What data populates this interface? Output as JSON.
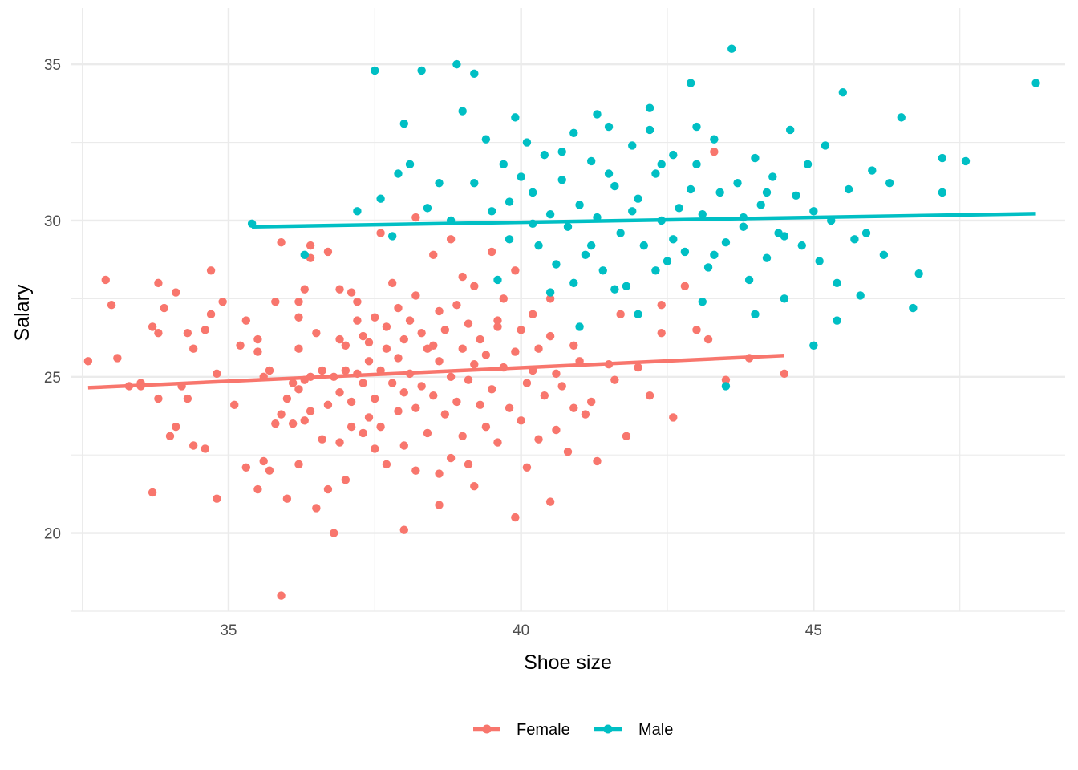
{
  "chart_data": {
    "type": "scatter",
    "title": "",
    "xlabel": "Shoe size",
    "ylabel": "Salary",
    "xlim": [
      32.3,
      49.3
    ],
    "ylim": [
      17.5,
      36.8
    ],
    "x_ticks": [
      35,
      40,
      45
    ],
    "x_tick_labels": [
      "35",
      "40",
      "45"
    ],
    "y_ticks": [
      20,
      25,
      30,
      35
    ],
    "y_tick_labels": [
      "20",
      "25",
      "30",
      "35"
    ],
    "grid": true,
    "legend_position": "bottom",
    "trend_lines": true,
    "series": [
      {
        "name": "Female",
        "color": "#F8766D",
        "trend": {
          "x": [
            32.6,
            44.5
          ],
          "y": [
            24.65,
            25.68
          ]
        },
        "points": [
          [
            32.6,
            25.5
          ],
          [
            32.9,
            28.1
          ],
          [
            33.0,
            27.3
          ],
          [
            33.1,
            25.6
          ],
          [
            33.3,
            24.7
          ],
          [
            33.5,
            24.7
          ],
          [
            33.7,
            26.6
          ],
          [
            33.7,
            21.3
          ],
          [
            33.8,
            26.4
          ],
          [
            33.8,
            28.0
          ],
          [
            33.8,
            24.3
          ],
          [
            33.9,
            27.2
          ],
          [
            34.1,
            27.7
          ],
          [
            34.1,
            23.4
          ],
          [
            34.2,
            24.7
          ],
          [
            34.3,
            26.4
          ],
          [
            34.3,
            24.3
          ],
          [
            34.4,
            25.9
          ],
          [
            34.4,
            22.8
          ],
          [
            34.6,
            26.5
          ],
          [
            34.6,
            22.7
          ],
          [
            34.7,
            28.4
          ],
          [
            34.8,
            25.1
          ],
          [
            34.8,
            21.1
          ],
          [
            34.9,
            27.4
          ],
          [
            35.1,
            24.1
          ],
          [
            35.2,
            26.0
          ],
          [
            35.3,
            26.8
          ],
          [
            35.3,
            22.1
          ],
          [
            35.5,
            25.8
          ],
          [
            35.5,
            21.4
          ],
          [
            35.6,
            25.0
          ],
          [
            35.6,
            22.3
          ],
          [
            35.7,
            25.2
          ],
          [
            35.7,
            22.0
          ],
          [
            35.8,
            23.5
          ],
          [
            35.9,
            29.3
          ],
          [
            35.9,
            23.8
          ],
          [
            35.9,
            18.0
          ],
          [
            36.0,
            21.1
          ],
          [
            36.1,
            24.8
          ],
          [
            36.1,
            23.5
          ],
          [
            36.2,
            27.4
          ],
          [
            36.2,
            26.9
          ],
          [
            36.2,
            25.9
          ],
          [
            36.2,
            24.6
          ],
          [
            36.2,
            22.2
          ],
          [
            36.3,
            27.8
          ],
          [
            36.3,
            24.9
          ],
          [
            36.3,
            23.6
          ],
          [
            36.4,
            29.2
          ],
          [
            36.4,
            28.8
          ],
          [
            36.4,
            25.0
          ],
          [
            36.4,
            23.9
          ],
          [
            36.5,
            26.4
          ],
          [
            36.5,
            20.8
          ],
          [
            36.6,
            25.2
          ],
          [
            36.6,
            23.0
          ],
          [
            36.7,
            24.1
          ],
          [
            36.7,
            21.4
          ],
          [
            36.8,
            25.0
          ],
          [
            36.8,
            20.0
          ],
          [
            36.9,
            27.8
          ],
          [
            36.9,
            24.5
          ],
          [
            36.9,
            22.9
          ],
          [
            37.0,
            26.0
          ],
          [
            37.0,
            25.2
          ],
          [
            37.1,
            27.7
          ],
          [
            37.1,
            24.2
          ],
          [
            37.1,
            23.4
          ],
          [
            37.2,
            27.4
          ],
          [
            37.2,
            26.8
          ],
          [
            37.2,
            25.1
          ],
          [
            37.3,
            26.3
          ],
          [
            37.3,
            24.8
          ],
          [
            37.3,
            23.2
          ],
          [
            37.4,
            26.1
          ],
          [
            37.4,
            25.5
          ],
          [
            37.5,
            26.9
          ],
          [
            37.5,
            24.3
          ],
          [
            37.5,
            22.7
          ],
          [
            37.6,
            25.2
          ],
          [
            37.6,
            23.4
          ],
          [
            37.7,
            26.6
          ],
          [
            37.7,
            25.9
          ],
          [
            37.7,
            22.2
          ],
          [
            37.8,
            28.0
          ],
          [
            37.8,
            24.8
          ],
          [
            37.9,
            27.2
          ],
          [
            37.9,
            25.6
          ],
          [
            37.9,
            23.9
          ],
          [
            38.0,
            26.2
          ],
          [
            38.0,
            24.5
          ],
          [
            38.0,
            22.8
          ],
          [
            38.1,
            26.8
          ],
          [
            38.1,
            25.1
          ],
          [
            38.2,
            27.6
          ],
          [
            38.2,
            24.0
          ],
          [
            38.2,
            22.0
          ],
          [
            38.3,
            26.4
          ],
          [
            38.3,
            24.7
          ],
          [
            38.4,
            25.9
          ],
          [
            38.4,
            23.2
          ],
          [
            38.5,
            28.9
          ],
          [
            38.5,
            26.0
          ],
          [
            38.5,
            24.4
          ],
          [
            38.6,
            27.1
          ],
          [
            38.6,
            25.5
          ],
          [
            38.6,
            21.9
          ],
          [
            38.7,
            26.5
          ],
          [
            38.7,
            23.8
          ],
          [
            38.8,
            25.0
          ],
          [
            38.8,
            22.4
          ],
          [
            38.9,
            27.3
          ],
          [
            38.9,
            24.2
          ],
          [
            39.0,
            28.2
          ],
          [
            39.0,
            25.9
          ],
          [
            39.0,
            23.1
          ],
          [
            39.1,
            26.7
          ],
          [
            39.1,
            24.9
          ],
          [
            39.2,
            27.9
          ],
          [
            39.2,
            25.4
          ],
          [
            39.2,
            21.5
          ],
          [
            39.3,
            26.2
          ],
          [
            39.3,
            24.1
          ],
          [
            39.4,
            25.7
          ],
          [
            39.4,
            23.4
          ],
          [
            39.5,
            29.0
          ],
          [
            39.5,
            24.6
          ],
          [
            39.6,
            26.8
          ],
          [
            39.6,
            22.9
          ],
          [
            39.7,
            25.3
          ],
          [
            39.7,
            27.5
          ],
          [
            39.8,
            24.0
          ],
          [
            39.9,
            20.5
          ],
          [
            39.9,
            25.8
          ],
          [
            40.0,
            23.6
          ],
          [
            40.0,
            26.5
          ],
          [
            40.1,
            24.8
          ],
          [
            40.1,
            22.1
          ],
          [
            40.2,
            27.0
          ],
          [
            40.2,
            25.2
          ],
          [
            40.3,
            23.0
          ],
          [
            40.3,
            25.9
          ],
          [
            40.4,
            24.4
          ],
          [
            40.5,
            26.3
          ],
          [
            40.5,
            21.0
          ],
          [
            40.6,
            25.1
          ],
          [
            40.6,
            23.3
          ],
          [
            40.7,
            24.7
          ],
          [
            40.8,
            22.6
          ],
          [
            40.9,
            26.0
          ],
          [
            40.9,
            24.0
          ],
          [
            41.0,
            25.5
          ],
          [
            41.1,
            23.8
          ],
          [
            41.2,
            24.2
          ],
          [
            41.3,
            22.3
          ],
          [
            41.5,
            25.4
          ],
          [
            41.6,
            24.9
          ],
          [
            41.8,
            23.1
          ],
          [
            42.0,
            25.3
          ],
          [
            42.2,
            24.4
          ],
          [
            42.4,
            26.4
          ],
          [
            42.6,
            23.7
          ],
          [
            42.8,
            27.9
          ],
          [
            43.0,
            26.5
          ],
          [
            43.2,
            26.2
          ],
          [
            43.5,
            24.9
          ],
          [
            43.9,
            25.6
          ],
          [
            44.5,
            25.1
          ],
          [
            43.3,
            32.2
          ],
          [
            42.4,
            27.3
          ],
          [
            41.7,
            27.0
          ],
          [
            40.5,
            27.5
          ],
          [
            39.6,
            26.6
          ],
          [
            38.8,
            29.4
          ],
          [
            38.2,
            30.1
          ],
          [
            37.6,
            29.6
          ],
          [
            36.7,
            29.0
          ],
          [
            35.8,
            27.4
          ],
          [
            34.7,
            27.0
          ],
          [
            34.0,
            23.1
          ],
          [
            33.5,
            24.8
          ],
          [
            36.0,
            24.3
          ],
          [
            37.0,
            21.7
          ],
          [
            38.0,
            20.1
          ],
          [
            38.6,
            20.9
          ],
          [
            39.1,
            22.2
          ],
          [
            35.5,
            26.2
          ],
          [
            36.9,
            26.2
          ],
          [
            37.4,
            23.7
          ],
          [
            39.9,
            28.4
          ]
        ]
      },
      {
        "name": "Male",
        "color": "#00BFC4",
        "trend": {
          "x": [
            35.4,
            48.8
          ],
          "y": [
            29.8,
            30.22
          ]
        },
        "points": [
          [
            35.4,
            29.9
          ],
          [
            36.3,
            28.9
          ],
          [
            37.2,
            30.3
          ],
          [
            37.5,
            34.8
          ],
          [
            37.6,
            30.7
          ],
          [
            37.8,
            29.5
          ],
          [
            37.9,
            31.5
          ],
          [
            38.0,
            33.1
          ],
          [
            38.1,
            31.8
          ],
          [
            38.3,
            34.8
          ],
          [
            38.4,
            30.4
          ],
          [
            38.6,
            31.2
          ],
          [
            38.8,
            30.0
          ],
          [
            38.9,
            35.0
          ],
          [
            39.0,
            33.5
          ],
          [
            39.2,
            34.7
          ],
          [
            39.2,
            31.2
          ],
          [
            39.4,
            32.6
          ],
          [
            39.5,
            30.3
          ],
          [
            39.6,
            28.1
          ],
          [
            39.7,
            31.8
          ],
          [
            39.8,
            29.4
          ],
          [
            39.9,
            33.3
          ],
          [
            40.0,
            31.4
          ],
          [
            40.1,
            32.5
          ],
          [
            40.2,
            30.9
          ],
          [
            40.3,
            29.2
          ],
          [
            40.4,
            32.1
          ],
          [
            40.5,
            30.2
          ],
          [
            40.6,
            28.6
          ],
          [
            40.7,
            31.3
          ],
          [
            40.8,
            29.8
          ],
          [
            40.9,
            32.8
          ],
          [
            41.0,
            30.5
          ],
          [
            41.1,
            28.9
          ],
          [
            41.2,
            31.9
          ],
          [
            41.3,
            30.1
          ],
          [
            41.4,
            28.4
          ],
          [
            41.5,
            33.0
          ],
          [
            41.6,
            31.1
          ],
          [
            41.7,
            29.6
          ],
          [
            41.8,
            27.9
          ],
          [
            41.9,
            32.4
          ],
          [
            42.0,
            30.7
          ],
          [
            42.1,
            29.2
          ],
          [
            42.2,
            33.6
          ],
          [
            42.3,
            31.5
          ],
          [
            42.4,
            30.0
          ],
          [
            42.5,
            28.7
          ],
          [
            42.6,
            32.1
          ],
          [
            42.7,
            30.4
          ],
          [
            42.8,
            29.0
          ],
          [
            42.9,
            34.4
          ],
          [
            43.0,
            31.8
          ],
          [
            43.1,
            30.2
          ],
          [
            43.2,
            28.5
          ],
          [
            43.3,
            32.6
          ],
          [
            43.4,
            30.9
          ],
          [
            43.5,
            29.3
          ],
          [
            43.6,
            35.5
          ],
          [
            43.7,
            31.2
          ],
          [
            43.8,
            29.8
          ],
          [
            43.9,
            28.1
          ],
          [
            44.0,
            32.0
          ],
          [
            44.1,
            30.5
          ],
          [
            44.2,
            28.8
          ],
          [
            44.3,
            31.4
          ],
          [
            44.4,
            29.6
          ],
          [
            44.5,
            27.5
          ],
          [
            44.6,
            32.9
          ],
          [
            44.7,
            30.8
          ],
          [
            44.8,
            29.2
          ],
          [
            44.9,
            31.8
          ],
          [
            45.0,
            30.3
          ],
          [
            45.1,
            28.7
          ],
          [
            45.2,
            32.4
          ],
          [
            45.3,
            30.0
          ],
          [
            45.4,
            28.0
          ],
          [
            45.5,
            34.1
          ],
          [
            45.6,
            31.0
          ],
          [
            45.7,
            29.4
          ],
          [
            45.8,
            27.6
          ],
          [
            46.0,
            31.6
          ],
          [
            46.2,
            28.9
          ],
          [
            46.5,
            33.3
          ],
          [
            46.7,
            27.2
          ],
          [
            46.8,
            28.3
          ],
          [
            47.2,
            30.9
          ],
          [
            47.2,
            32.0
          ],
          [
            47.6,
            31.9
          ],
          [
            48.8,
            34.4
          ],
          [
            41.6,
            27.8
          ],
          [
            42.0,
            27.0
          ],
          [
            41.0,
            26.6
          ],
          [
            40.5,
            27.7
          ],
          [
            43.5,
            24.7
          ],
          [
            45.0,
            26.0
          ],
          [
            45.4,
            26.8
          ],
          [
            44.0,
            27.0
          ],
          [
            43.1,
            27.4
          ],
          [
            42.3,
            28.4
          ],
          [
            41.2,
            29.2
          ],
          [
            40.2,
            29.9
          ],
          [
            39.8,
            30.6
          ],
          [
            41.5,
            31.5
          ],
          [
            42.4,
            31.8
          ],
          [
            42.9,
            31.0
          ],
          [
            43.8,
            30.1
          ],
          [
            44.5,
            29.5
          ],
          [
            40.7,
            32.2
          ],
          [
            41.9,
            30.3
          ],
          [
            42.6,
            29.4
          ],
          [
            43.3,
            28.9
          ],
          [
            40.9,
            28.0
          ],
          [
            41.3,
            33.4
          ],
          [
            42.2,
            32.9
          ],
          [
            43.0,
            33.0
          ],
          [
            44.2,
            30.9
          ],
          [
            45.9,
            29.6
          ],
          [
            46.3,
            31.2
          ]
        ]
      }
    ]
  },
  "legend": {
    "items": [
      {
        "label": "Female",
        "color": "#F8766D"
      },
      {
        "label": "Male",
        "color": "#00BFC4"
      }
    ]
  }
}
